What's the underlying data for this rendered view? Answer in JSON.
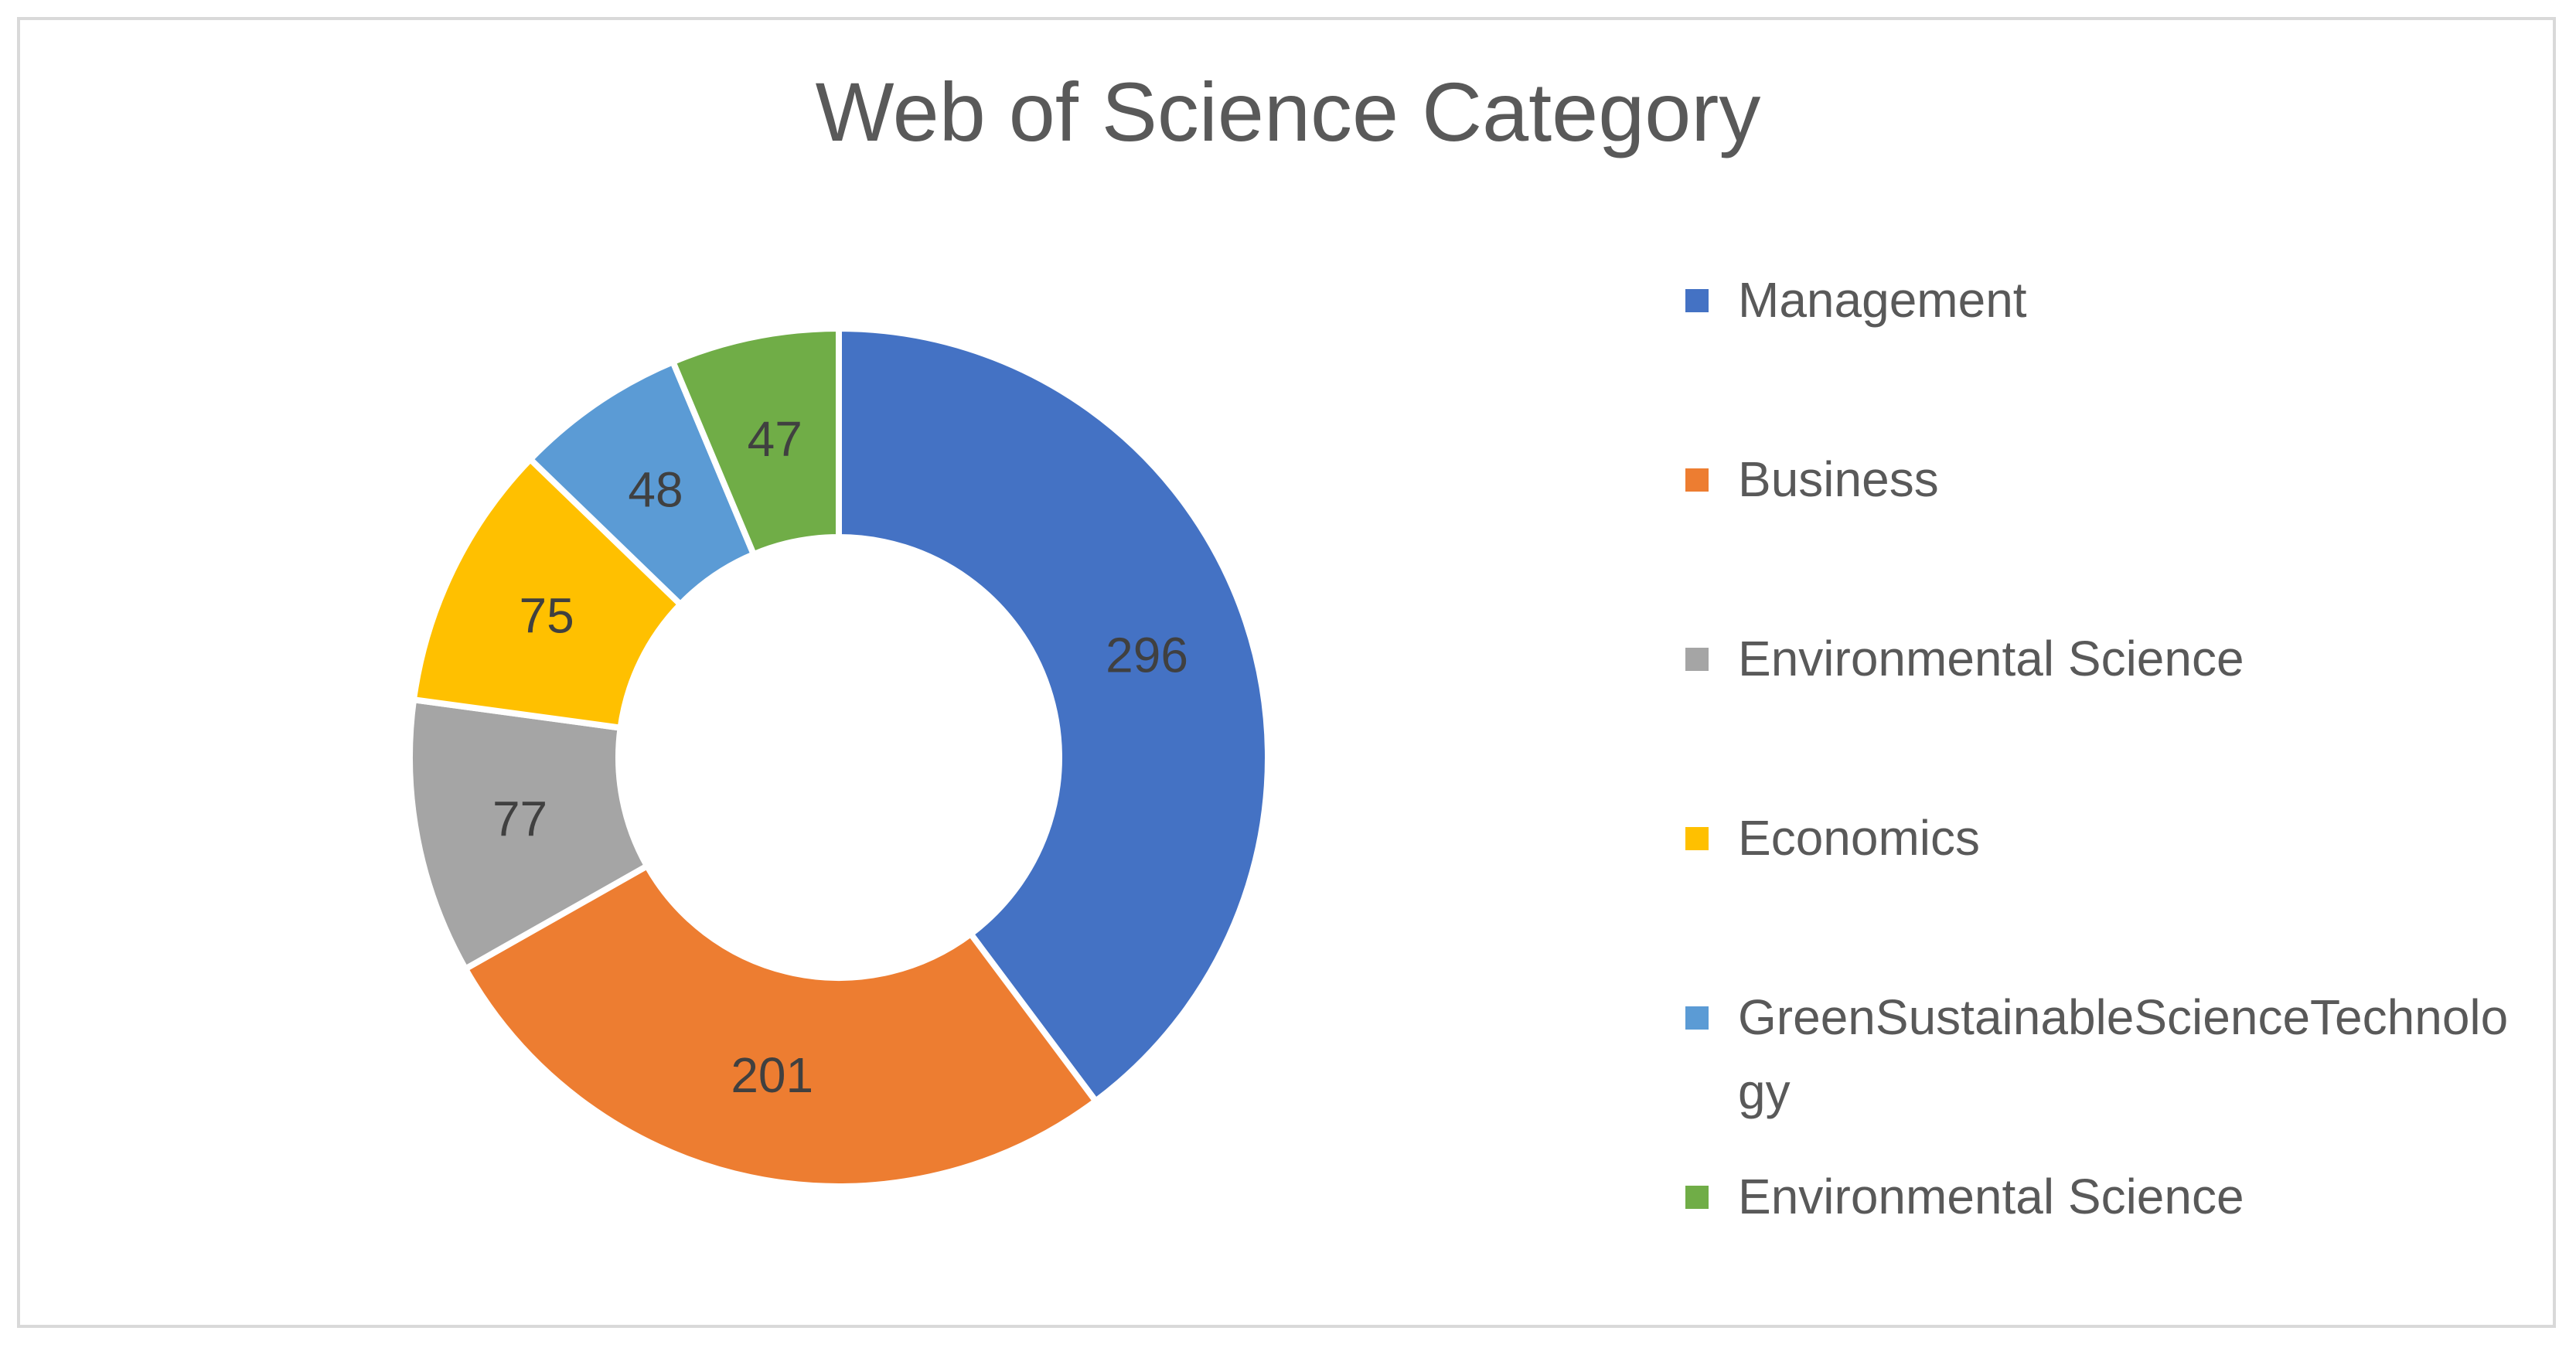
{
  "chart_data": {
    "type": "pie",
    "donut": true,
    "title": "Web of Science Category",
    "categories": [
      "Management",
      "Business",
      "Environmental Science",
      "Economics",
      "GreenSustainableScienceTechnology",
      "Environmental Science"
    ],
    "values": [
      296,
      201,
      77,
      75,
      48,
      47
    ],
    "colors": [
      "#4472C4",
      "#ED7D31",
      "#A5A5A5",
      "#FFC000",
      "#5B9BD5",
      "#70AD47"
    ],
    "legend_position": "right",
    "data_labels": true
  }
}
